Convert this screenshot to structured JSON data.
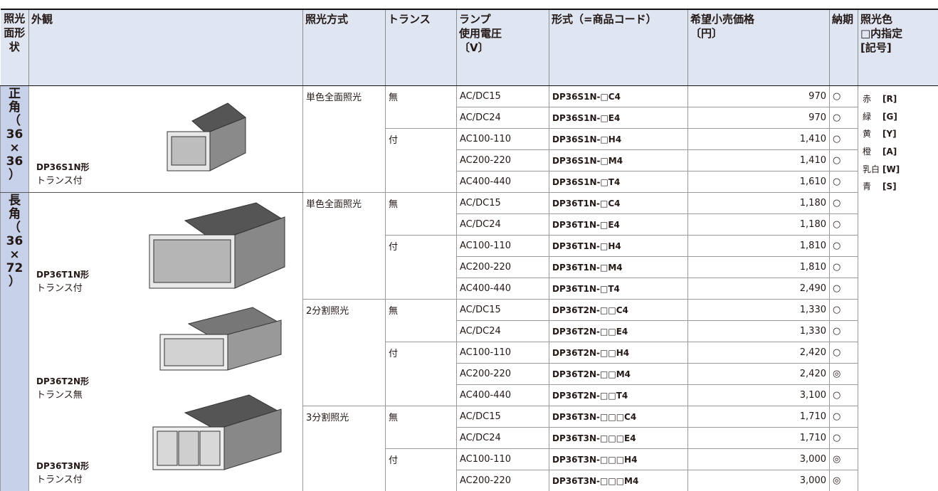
{
  "header": {
    "shape": "照光面形状",
    "appearance": "外観",
    "lighting": "照光方式",
    "transformer": "トランス",
    "voltage": [
      "ランプ",
      "使用電圧",
      "〔V〕"
    ],
    "code": "形式（=商品コード）",
    "price": [
      "希望小売価格",
      "〔円〕"
    ],
    "delivery": "納期",
    "color": [
      "照光色",
      "□内指定",
      "[記号]"
    ]
  },
  "sections": [
    {
      "shape": "正角（36×36）",
      "models": [
        {
          "model": "DP36S1N形",
          "note": "トランス付",
          "lighting": "単色全面照光",
          "transformers": [
            {
              "label": "無",
              "rows": [
                [
                  "AC/DC15",
                  "DP36S1N-□C4",
                  "970",
                  "○"
                ],
                [
                  "AC/DC24",
                  "DP36S1N-□E4",
                  "970",
                  "○"
                ]
              ]
            },
            {
              "label": "付",
              "rows": [
                [
                  "AC100-110",
                  "DP36S1N-□H4",
                  "1,410",
                  "○"
                ],
                [
                  "AC200-220",
                  "DP36S1N-□M4",
                  "1,410",
                  "○"
                ],
                [
                  "AC400-440",
                  "DP36S1N-□T4",
                  "1,610",
                  "○"
                ]
              ]
            }
          ]
        }
      ]
    },
    {
      "shape": "長角（36×72）",
      "models": [
        {
          "model": "DP36T1N形",
          "note": "トランス付",
          "lighting": "単色全面照光",
          "transformers": [
            {
              "label": "無",
              "rows": [
                [
                  "AC/DC15",
                  "DP36T1N-□C4",
                  "1,180",
                  "○"
                ],
                [
                  "AC/DC24",
                  "DP36T1N-□E4",
                  "1,180",
                  "○"
                ]
              ]
            },
            {
              "label": "付",
              "rows": [
                [
                  "AC100-110",
                  "DP36T1N-□H4",
                  "1,810",
                  "○"
                ],
                [
                  "AC200-220",
                  "DP36T1N-□M4",
                  "1,810",
                  "○"
                ],
                [
                  "AC400-440",
                  "DP36T1N-□T4",
                  "2,490",
                  "○"
                ]
              ]
            }
          ]
        },
        {
          "model": "DP36T2N形",
          "note": "トランス無",
          "lighting": "2分割照光",
          "transformers": [
            {
              "label": "無",
              "rows": [
                [
                  "AC/DC15",
                  "DP36T2N-□□C4",
                  "1,330",
                  "○"
                ],
                [
                  "AC/DC24",
                  "DP36T2N-□□E4",
                  "1,330",
                  "○"
                ]
              ]
            },
            {
              "label": "付",
              "rows": [
                [
                  "AC100-110",
                  "DP36T2N-□□H4",
                  "2,420",
                  "○"
                ],
                [
                  "AC200-220",
                  "DP36T2N-□□M4",
                  "2,420",
                  "◎"
                ],
                [
                  "AC400-440",
                  "DP36T2N-□□T4",
                  "3,100",
                  "○"
                ]
              ]
            }
          ]
        },
        {
          "model": "DP36T3N形",
          "note": "トランス付",
          "lighting": "3分割照光",
          "transformers": [
            {
              "label": "無",
              "rows": [
                [
                  "AC/DC15",
                  "DP36T3N-□□□C4",
                  "1,710",
                  "○"
                ],
                [
                  "AC/DC24",
                  "DP36T3N-□□□E4",
                  "1,710",
                  "○"
                ]
              ]
            },
            {
              "label": "付",
              "rows": [
                [
                  "AC100-110",
                  "DP36T3N-□□□H4",
                  "3,000",
                  "◎"
                ],
                [
                  "AC200-220",
                  "DP36T3N-□□□M4",
                  "3,000",
                  "◎"
                ]
              ]
            }
          ]
        }
      ]
    }
  ],
  "colors": [
    {
      "name": "赤",
      "code": "[R]"
    },
    {
      "name": "緑",
      "code": "[G]"
    },
    {
      "name": "黄",
      "code": "[Y]"
    },
    {
      "name": "橙",
      "code": "[A]"
    },
    {
      "name": "乳白",
      "code": "[W]"
    },
    {
      "name": "青",
      "code": "[S]"
    }
  ]
}
